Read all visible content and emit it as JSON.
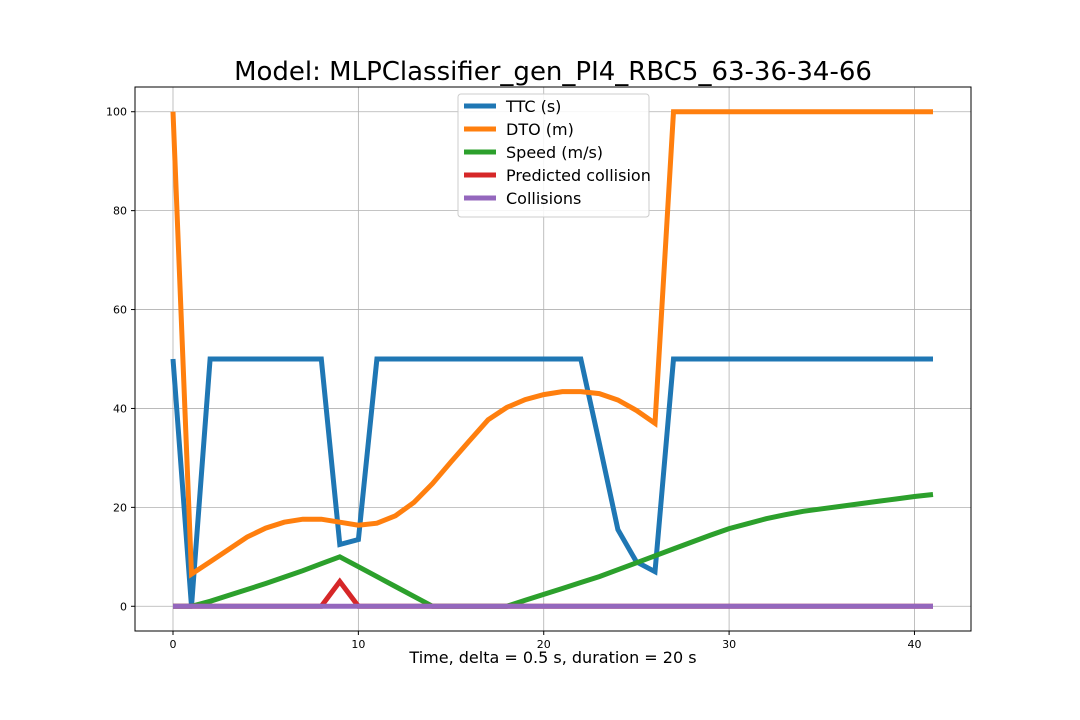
{
  "chart_data": {
    "type": "line",
    "title": "Model: MLPClassifier_gen_PI4_RBC5_63-36-34-66",
    "xlabel": "Time, delta = 0.5 s, duration = 20 s",
    "ylabel": "",
    "xlim": [
      -2.05,
      43.05
    ],
    "ylim": [
      -5,
      105
    ],
    "x_ticks": [
      0,
      10,
      20,
      30,
      40
    ],
    "y_ticks": [
      0,
      20,
      40,
      60,
      80,
      100
    ],
    "grid": true,
    "legend_position": "top-center",
    "series": [
      {
        "name": "TTC (s)",
        "color": "#1f77b4",
        "points": [
          [
            0,
            50
          ],
          [
            1,
            0
          ],
          [
            2,
            50
          ],
          [
            3,
            50
          ],
          [
            4,
            50
          ],
          [
            5,
            50
          ],
          [
            6,
            50
          ],
          [
            7,
            50
          ],
          [
            8,
            50
          ],
          [
            9,
            12.5
          ],
          [
            10,
            13.5
          ],
          [
            11,
            50
          ],
          [
            12,
            50
          ],
          [
            13,
            50
          ],
          [
            14,
            50
          ],
          [
            15,
            50
          ],
          [
            16,
            50
          ],
          [
            17,
            50
          ],
          [
            18,
            50
          ],
          [
            19,
            50
          ],
          [
            20,
            50
          ],
          [
            21,
            50
          ],
          [
            22,
            50
          ],
          [
            23,
            33
          ],
          [
            24,
            15.5
          ],
          [
            25,
            9
          ],
          [
            26,
            7
          ],
          [
            27,
            50
          ],
          [
            28,
            50
          ],
          [
            29,
            50
          ],
          [
            30,
            50
          ],
          [
            31,
            50
          ],
          [
            32,
            50
          ],
          [
            33,
            50
          ],
          [
            34,
            50
          ],
          [
            35,
            50
          ],
          [
            36,
            50
          ],
          [
            37,
            50
          ],
          [
            38,
            50
          ],
          [
            39,
            50
          ],
          [
            40,
            50
          ],
          [
            41,
            50
          ]
        ]
      },
      {
        "name": "DTO (m)",
        "color": "#ff7f0e",
        "points": [
          [
            0,
            100
          ],
          [
            1,
            6.5
          ],
          [
            2,
            9
          ],
          [
            3,
            11.5
          ],
          [
            4,
            14
          ],
          [
            5,
            15.8
          ],
          [
            6,
            17
          ],
          [
            7,
            17.6
          ],
          [
            8,
            17.6
          ],
          [
            9,
            17
          ],
          [
            10,
            16.4
          ],
          [
            11,
            16.8
          ],
          [
            12,
            18.3
          ],
          [
            13,
            21
          ],
          [
            14,
            24.8
          ],
          [
            15,
            29.2
          ],
          [
            16,
            33.5
          ],
          [
            17,
            37.7
          ],
          [
            18,
            40.2
          ],
          [
            19,
            41.8
          ],
          [
            20,
            42.8
          ],
          [
            21,
            43.4
          ],
          [
            22,
            43.4
          ],
          [
            23,
            43
          ],
          [
            24,
            41.7
          ],
          [
            25,
            39.6
          ],
          [
            26,
            37
          ],
          [
            27,
            100
          ],
          [
            28,
            100
          ],
          [
            29,
            100
          ],
          [
            30,
            100
          ],
          [
            31,
            100
          ],
          [
            32,
            100
          ],
          [
            33,
            100
          ],
          [
            34,
            100
          ],
          [
            35,
            100
          ],
          [
            36,
            100
          ],
          [
            37,
            100
          ],
          [
            38,
            100
          ],
          [
            39,
            100
          ],
          [
            40,
            100
          ],
          [
            41,
            100
          ]
        ]
      },
      {
        "name": "Speed (m/s)",
        "color": "#2ca02c",
        "points": [
          [
            0,
            0
          ],
          [
            1,
            0
          ],
          [
            2,
            1
          ],
          [
            3,
            2.2
          ],
          [
            4,
            3.4
          ],
          [
            5,
            4.6
          ],
          [
            6,
            5.9
          ],
          [
            7,
            7.2
          ],
          [
            8,
            8.6
          ],
          [
            9,
            10
          ],
          [
            10,
            8
          ],
          [
            11,
            6
          ],
          [
            12,
            4
          ],
          [
            13,
            2
          ],
          [
            14,
            0
          ],
          [
            15,
            0
          ],
          [
            16,
            0
          ],
          [
            17,
            0
          ],
          [
            18,
            0
          ],
          [
            19,
            1.2
          ],
          [
            20,
            2.4
          ],
          [
            21,
            3.6
          ],
          [
            22,
            4.8
          ],
          [
            23,
            6
          ],
          [
            24,
            7.4
          ],
          [
            25,
            8.8
          ],
          [
            26,
            10.2
          ],
          [
            27,
            11.6
          ],
          [
            28,
            13
          ],
          [
            29,
            14.4
          ],
          [
            30,
            15.7
          ],
          [
            31,
            16.7
          ],
          [
            32,
            17.7
          ],
          [
            33,
            18.5
          ],
          [
            34,
            19.2
          ],
          [
            35,
            19.7
          ],
          [
            36,
            20.2
          ],
          [
            37,
            20.7
          ],
          [
            38,
            21.2
          ],
          [
            39,
            21.7
          ],
          [
            40,
            22.2
          ],
          [
            41,
            22.6
          ]
        ]
      },
      {
        "name": "Predicted collision",
        "color": "#d62728",
        "points": [
          [
            0,
            0
          ],
          [
            1,
            0
          ],
          [
            2,
            0
          ],
          [
            3,
            0
          ],
          [
            4,
            0
          ],
          [
            5,
            0
          ],
          [
            6,
            0
          ],
          [
            7,
            0
          ],
          [
            8,
            0
          ],
          [
            9,
            5
          ],
          [
            10,
            0
          ],
          [
            11,
            0
          ],
          [
            12,
            0
          ],
          [
            13,
            0
          ],
          [
            14,
            0
          ],
          [
            15,
            0
          ],
          [
            16,
            0
          ],
          [
            17,
            0
          ],
          [
            18,
            0
          ],
          [
            19,
            0
          ],
          [
            20,
            0
          ],
          [
            21,
            0
          ],
          [
            22,
            0
          ],
          [
            23,
            0
          ],
          [
            24,
            0
          ],
          [
            25,
            0
          ],
          [
            26,
            0
          ],
          [
            27,
            0
          ],
          [
            28,
            0
          ],
          [
            29,
            0
          ],
          [
            30,
            0
          ],
          [
            31,
            0
          ],
          [
            32,
            0
          ],
          [
            33,
            0
          ],
          [
            34,
            0
          ],
          [
            35,
            0
          ],
          [
            36,
            0
          ],
          [
            37,
            0
          ],
          [
            38,
            0
          ],
          [
            39,
            0
          ],
          [
            40,
            0
          ],
          [
            41,
            0
          ]
        ]
      },
      {
        "name": "Collisions",
        "color": "#9467bd",
        "points": [
          [
            0,
            0
          ],
          [
            1,
            0
          ],
          [
            2,
            0
          ],
          [
            3,
            0
          ],
          [
            4,
            0
          ],
          [
            5,
            0
          ],
          [
            6,
            0
          ],
          [
            7,
            0
          ],
          [
            8,
            0
          ],
          [
            9,
            0
          ],
          [
            10,
            0
          ],
          [
            11,
            0
          ],
          [
            12,
            0
          ],
          [
            13,
            0
          ],
          [
            14,
            0
          ],
          [
            15,
            0
          ],
          [
            16,
            0
          ],
          [
            17,
            0
          ],
          [
            18,
            0
          ],
          [
            19,
            0
          ],
          [
            20,
            0
          ],
          [
            21,
            0
          ],
          [
            22,
            0
          ],
          [
            23,
            0
          ],
          [
            24,
            0
          ],
          [
            25,
            0
          ],
          [
            26,
            0
          ],
          [
            27,
            0
          ],
          [
            28,
            0
          ],
          [
            29,
            0
          ],
          [
            30,
            0
          ],
          [
            31,
            0
          ],
          [
            32,
            0
          ],
          [
            33,
            0
          ],
          [
            34,
            0
          ],
          [
            35,
            0
          ],
          [
            36,
            0
          ],
          [
            37,
            0
          ],
          [
            38,
            0
          ],
          [
            39,
            0
          ],
          [
            40,
            0
          ],
          [
            41,
            0
          ]
        ]
      }
    ]
  }
}
